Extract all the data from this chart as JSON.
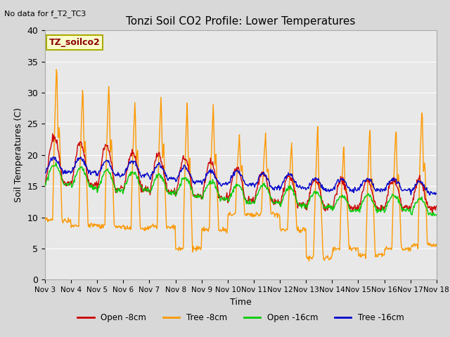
{
  "title": "Tonzi Soil CO2 Profile: Lower Temperatures",
  "top_left_text": "No data for f_T2_TC3",
  "ylabel": "Soil Temperatures (C)",
  "xlabel": "Time",
  "legend_title": "TZ_soilco2",
  "ylim": [
    0,
    40
  ],
  "fig_bg_color": "#d8d8d8",
  "plot_bg_color": "#e8e8e8",
  "xtick_labels": [
    "Nov 3",
    "Nov 4",
    "Nov 5",
    "Nov 6",
    "Nov 7",
    "Nov 8",
    "Nov 9",
    "Nov 10",
    "Nov 11",
    "Nov 12",
    "Nov 13",
    "Nov 14",
    "Nov 15",
    "Nov 16",
    "Nov 17",
    "Nov 18"
  ],
  "line_colors": {
    "open8": "#cc0000",
    "tree8": "#ff9900",
    "open16": "#00cc00",
    "tree16": "#0000cc"
  },
  "line_labels": [
    "Open -8cm",
    "Tree -8cm",
    "Open -16cm",
    "Tree -16cm"
  ]
}
